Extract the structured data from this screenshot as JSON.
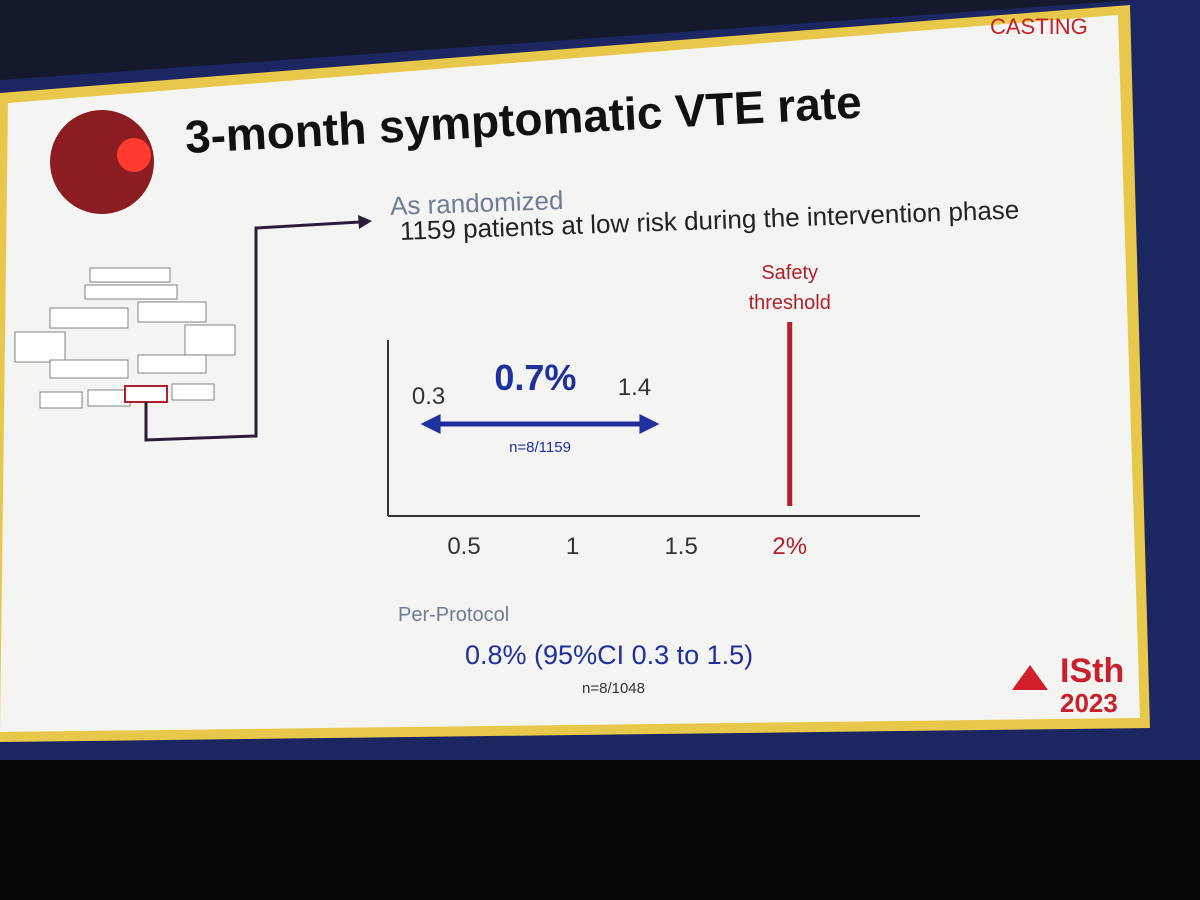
{
  "logo": "CASTING",
  "title": "3-month symptomatic VTE rate",
  "subtitle": "As randomized",
  "population": "1159 patients at low risk during the intervention phase",
  "per_protocol": {
    "heading": "Per-Protocol",
    "result": "0.8% (95%CI 0.3 to 1.5)",
    "n": "n=8/1048"
  },
  "congress": {
    "name": "ISth",
    "year": "2023"
  },
  "chart_data": {
    "type": "interval",
    "values": [
      0.7
    ],
    "value_labels": [
      "0.7%"
    ],
    "lower": [
      0.3
    ],
    "upper": [
      1.4
    ],
    "n_labels": [
      "n=8/1159"
    ],
    "color": "#1f2f9e",
    "threshold": {
      "value": 2,
      "label": "Safety threshold",
      "color": "#b0202c"
    },
    "xlim": [
      0.15,
      2.6
    ],
    "xticks": [
      0.5,
      1,
      1.5,
      {
        "value": 2,
        "label": "2%"
      }
    ]
  }
}
